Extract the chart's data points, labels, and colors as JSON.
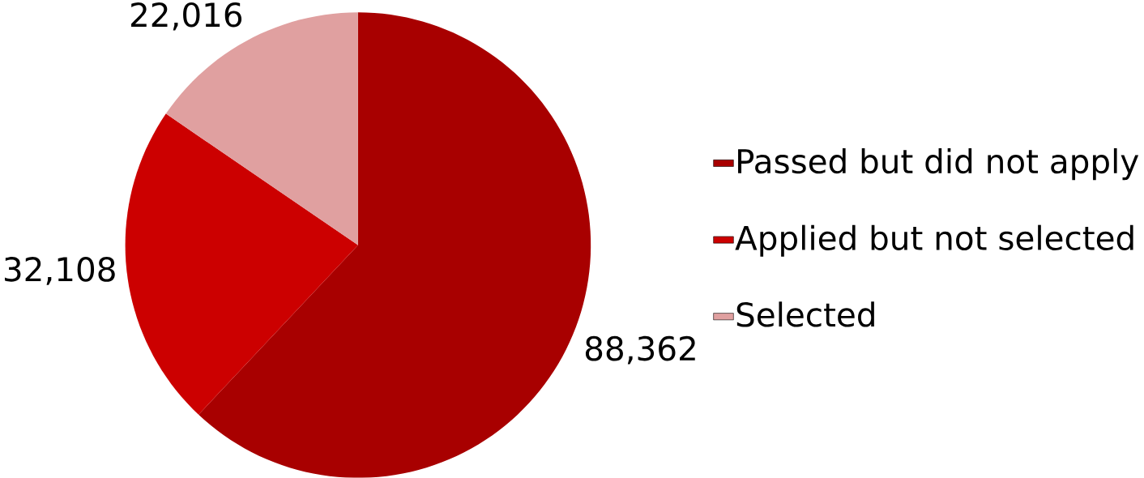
{
  "chart_data": {
    "type": "pie",
    "categories": [
      "Passed but did not apply",
      "Applied but not selected",
      "Selected"
    ],
    "values": [
      88362,
      32108,
      22016
    ],
    "value_labels": [
      "88,362",
      "32,108",
      "22,016"
    ],
    "colors": [
      "#a80000",
      "#cc0000",
      "#e0a0a0"
    ],
    "legend": "right"
  }
}
